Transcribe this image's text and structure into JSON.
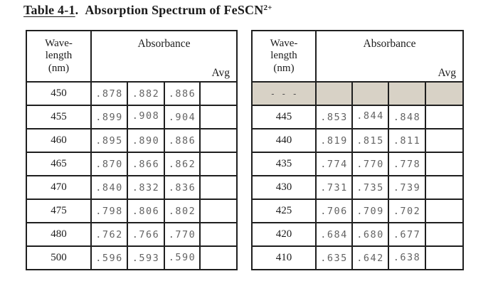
{
  "title": {
    "table_label": "Table 4-1",
    "period": ".",
    "text": "Absorption Spectrum of FeSCN",
    "superscript": "2+"
  },
  "header": {
    "wavelength_lines": [
      "Wave-",
      "length",
      "(nm)"
    ],
    "absorbance_label": "Absorbance",
    "avg_label": "Avg"
  },
  "colors": {
    "shaded_row_bg": "#d8d2c6",
    "border": "#1f1f1f",
    "value_text": "#636363"
  },
  "left_table": {
    "rows": [
      {
        "wavelength": "450",
        "values": [
          ".878",
          ".882",
          ".886"
        ],
        "avg": "",
        "shaded": false
      },
      {
        "wavelength": "455",
        "values": [
          ".899",
          ".908",
          ".904"
        ],
        "avg": "",
        "shaded": false
      },
      {
        "wavelength": "460",
        "values": [
          ".895",
          ".890",
          ".886"
        ],
        "avg": "",
        "shaded": false
      },
      {
        "wavelength": "465",
        "values": [
          ".870",
          ".866",
          ".862"
        ],
        "avg": "",
        "shaded": false
      },
      {
        "wavelength": "470",
        "values": [
          ".840",
          ".832",
          ".836"
        ],
        "avg": "",
        "shaded": false
      },
      {
        "wavelength": "475",
        "values": [
          ".798",
          ".806",
          ".802"
        ],
        "avg": "",
        "shaded": false
      },
      {
        "wavelength": "480",
        "values": [
          ".762",
          ".766",
          ".770"
        ],
        "avg": "",
        "shaded": false
      },
      {
        "wavelength": "500",
        "values": [
          ".596",
          ".593",
          ".590"
        ],
        "avg": "",
        "shaded": false
      }
    ]
  },
  "right_table": {
    "rows": [
      {
        "wavelength": "- - -",
        "values": [
          "",
          "",
          ""
        ],
        "avg": "",
        "shaded": true
      },
      {
        "wavelength": "445",
        "values": [
          ".853",
          ".844",
          ".848"
        ],
        "avg": "",
        "shaded": false
      },
      {
        "wavelength": "440",
        "values": [
          ".819",
          ".815",
          ".811"
        ],
        "avg": "",
        "shaded": false
      },
      {
        "wavelength": "435",
        "values": [
          ".774",
          ".770",
          ".778"
        ],
        "avg": "",
        "shaded": false
      },
      {
        "wavelength": "430",
        "values": [
          ".731",
          ".735",
          ".739"
        ],
        "avg": "",
        "shaded": false
      },
      {
        "wavelength": "425",
        "values": [
          ".706",
          ".709",
          ".702"
        ],
        "avg": "",
        "shaded": false
      },
      {
        "wavelength": "420",
        "values": [
          ".684",
          ".680",
          ".677"
        ],
        "avg": "",
        "shaded": false
      },
      {
        "wavelength": "410",
        "values": [
          ".635",
          ".642",
          ".638"
        ],
        "avg": "",
        "shaded": false
      }
    ]
  }
}
